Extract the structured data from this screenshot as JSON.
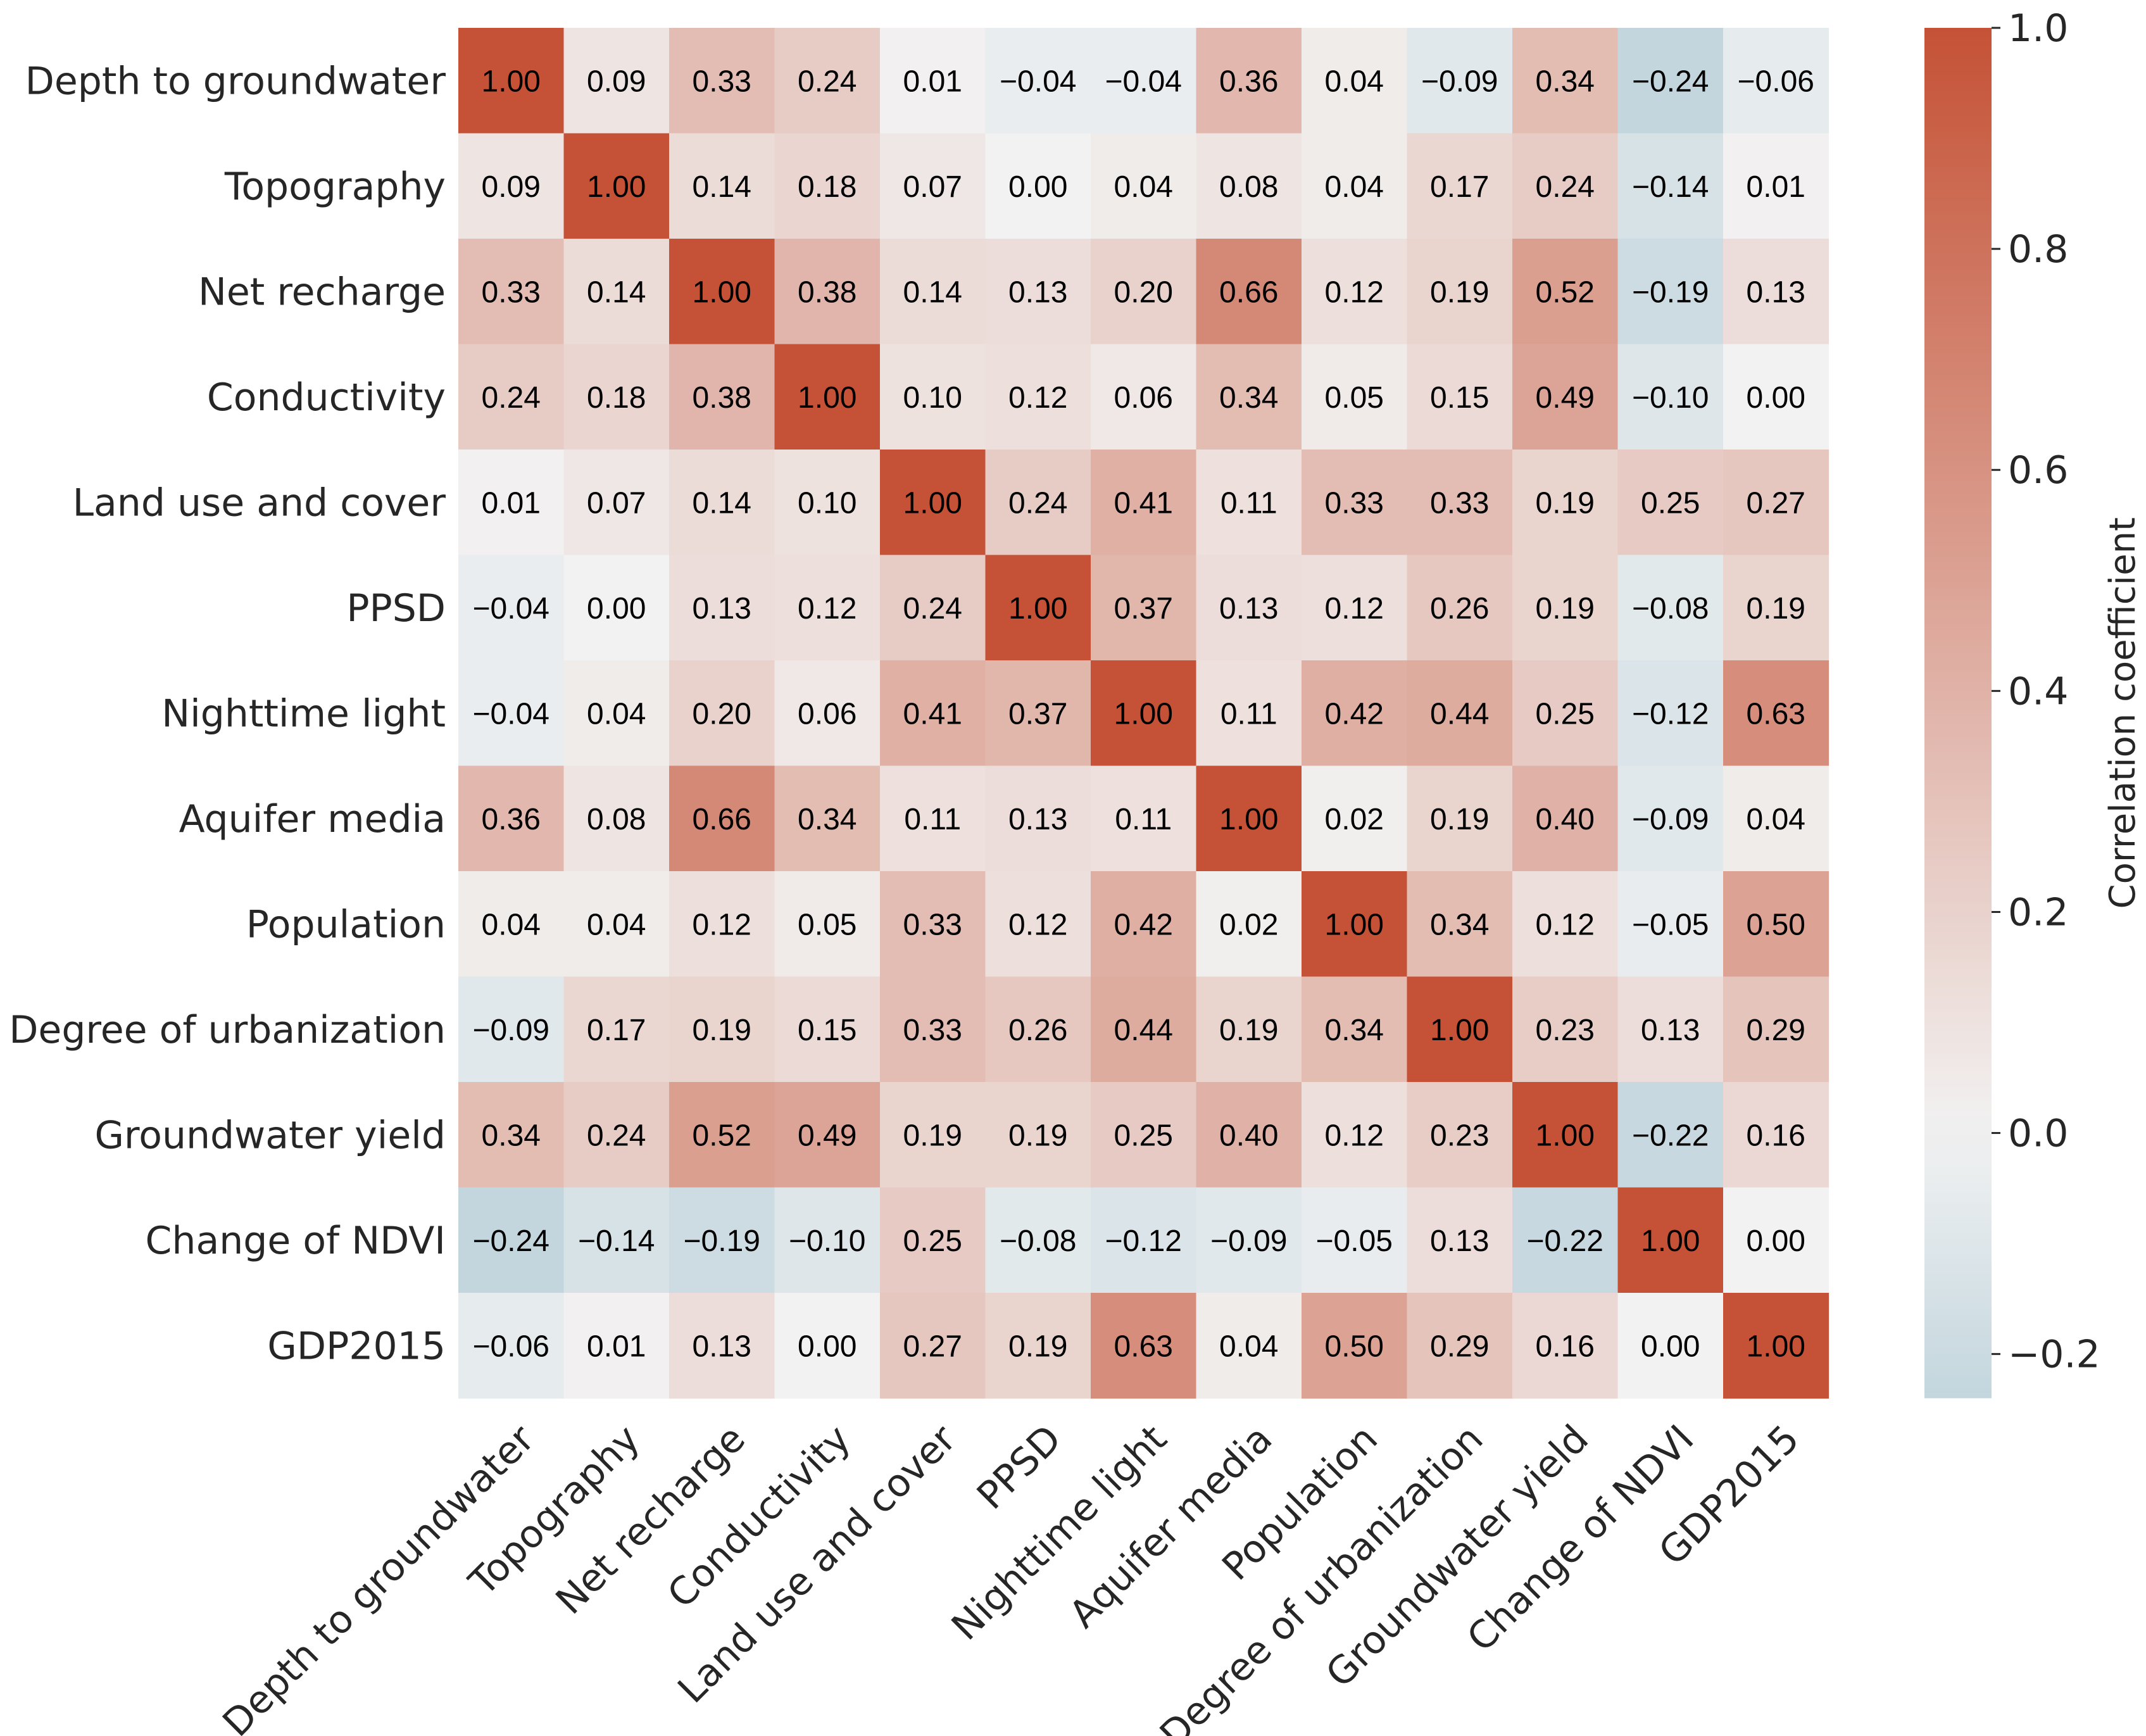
{
  "chart_data": {
    "type": "heatmap",
    "variables": [
      "Depth to groundwater",
      "Topography",
      "Net recharge",
      "Conductivity",
      "Land use and cover",
      "PPSD",
      "Nighttime light",
      "Aquifer media",
      "Population",
      "Degree of urbanization",
      "Groundwater yield",
      "Change of NDVI",
      "GDP2015"
    ],
    "matrix": [
      [
        1.0,
        0.09,
        0.33,
        0.24,
        0.01,
        -0.04,
        -0.04,
        0.36,
        0.04,
        -0.09,
        0.34,
        -0.24,
        -0.06
      ],
      [
        0.09,
        1.0,
        0.14,
        0.18,
        0.07,
        0.0,
        0.04,
        0.08,
        0.04,
        0.17,
        0.24,
        -0.14,
        0.01
      ],
      [
        0.33,
        0.14,
        1.0,
        0.38,
        0.14,
        0.13,
        0.2,
        0.66,
        0.12,
        0.19,
        0.52,
        -0.19,
        0.13
      ],
      [
        0.24,
        0.18,
        0.38,
        1.0,
        0.1,
        0.12,
        0.06,
        0.34,
        0.05,
        0.15,
        0.49,
        -0.1,
        0.0
      ],
      [
        0.01,
        0.07,
        0.14,
        0.1,
        1.0,
        0.24,
        0.41,
        0.11,
        0.33,
        0.33,
        0.19,
        0.25,
        0.27
      ],
      [
        -0.04,
        0.0,
        0.13,
        0.12,
        0.24,
        1.0,
        0.37,
        0.13,
        0.12,
        0.26,
        0.19,
        -0.08,
        0.19
      ],
      [
        -0.04,
        0.04,
        0.2,
        0.06,
        0.41,
        0.37,
        1.0,
        0.11,
        0.42,
        0.44,
        0.25,
        -0.12,
        0.63
      ],
      [
        0.36,
        0.08,
        0.66,
        0.34,
        0.11,
        0.13,
        0.11,
        1.0,
        0.02,
        0.19,
        0.4,
        -0.09,
        0.04
      ],
      [
        0.04,
        0.04,
        0.12,
        0.05,
        0.33,
        0.12,
        0.42,
        0.02,
        1.0,
        0.34,
        0.12,
        -0.05,
        0.5
      ],
      [
        -0.09,
        0.17,
        0.19,
        0.15,
        0.33,
        0.26,
        0.44,
        0.19,
        0.34,
        1.0,
        0.23,
        0.13,
        0.29
      ],
      [
        0.34,
        0.24,
        0.52,
        0.49,
        0.19,
        0.19,
        0.25,
        0.4,
        0.12,
        0.23,
        1.0,
        -0.22,
        0.16
      ],
      [
        -0.24,
        -0.14,
        -0.19,
        -0.1,
        0.25,
        -0.08,
        -0.12,
        -0.09,
        -0.05,
        0.13,
        -0.22,
        1.0,
        0.0
      ],
      [
        -0.06,
        0.01,
        0.13,
        0.0,
        0.27,
        0.19,
        0.63,
        0.04,
        0.5,
        0.29,
        0.16,
        0.0,
        1.0
      ]
    ],
    "value_format": "2 decimals, unicode minus",
    "colorbar": {
      "label": "Correlation coefficient",
      "range": [
        -0.24,
        1.0
      ],
      "ticks": [
        -0.2,
        0.0,
        0.2,
        0.4,
        0.6,
        0.8,
        1.0
      ],
      "tick_labels": [
        "−0.2",
        "0.0",
        "0.2",
        "0.4",
        "0.6",
        "0.8",
        "1.0"
      ],
      "colors": {
        "low": "#c3d6de",
        "mid": "#f2f2f2",
        "high": "#c55236"
      }
    },
    "grid": false,
    "legend": "colorbar-right"
  }
}
